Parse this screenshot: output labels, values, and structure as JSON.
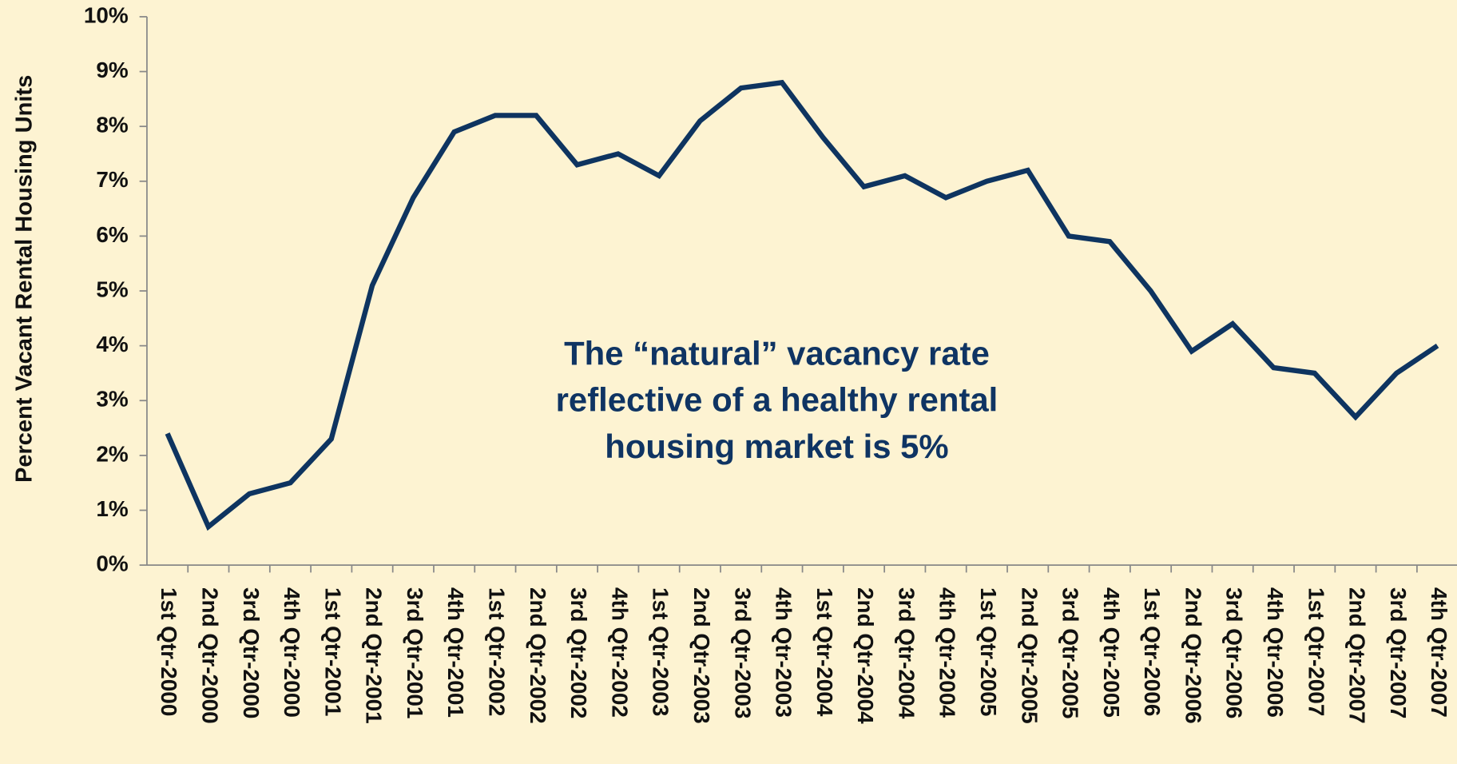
{
  "chart_data": {
    "type": "line",
    "y_axis_label": "Percent Vacant Rental Housing Units",
    "annotation": [
      "The “natural” vacancy rate",
      "reflective of a healthy rental",
      "housing market is 5%"
    ],
    "categories": [
      "1st Qtr-2000",
      "2nd Qtr-2000",
      "3rd Qtr-2000",
      "4th Qtr-2000",
      "1st Qtr-2001",
      "2nd Qtr-2001",
      "3rd Qtr-2001",
      "4th Qtr-2001",
      "1st Qtr-2002",
      "2nd Qtr-2002",
      "3rd Qtr-2002",
      "4th Qtr-2002",
      "1st Qtr-2003",
      "2nd Qtr-2003",
      "3rd Qtr-2003",
      "4th Qtr-2003",
      "1st Qtr-2004",
      "2nd Qtr-2004",
      "3rd Qtr-2004",
      "4th Qtr-2004",
      "1st Qtr-2005",
      "2nd Qtr-2005",
      "3rd Qtr-2005",
      "4th Qtr-2005",
      "1st Qtr-2006",
      "2nd Qtr-2006",
      "3rd Qtr-2006",
      "4th Qtr-2006",
      "1st Qtr-2007",
      "2nd Qtr-2007",
      "3rd Qtr-2007",
      "4th Qtr-2007"
    ],
    "values": [
      2.4,
      0.7,
      1.3,
      1.5,
      2.3,
      5.1,
      6.7,
      7.9,
      8.2,
      8.2,
      7.3,
      7.5,
      7.1,
      8.1,
      8.7,
      8.8,
      7.8,
      6.9,
      7.1,
      6.7,
      7.0,
      7.2,
      6.0,
      5.9,
      5.0,
      3.9,
      4.4,
      3.6,
      3.5,
      2.7,
      3.5,
      4.0
    ],
    "color": "#0e3460",
    "ylim": [
      0,
      10
    ],
    "yticks": [
      {
        "value": 0,
        "label": "0%"
      },
      {
        "value": 1,
        "label": "1%"
      },
      {
        "value": 2,
        "label": "2%"
      },
      {
        "value": 3,
        "label": "3%"
      },
      {
        "value": 4,
        "label": "4%"
      },
      {
        "value": 5,
        "label": "5%"
      },
      {
        "value": 6,
        "label": "6%"
      },
      {
        "value": 7,
        "label": "7%"
      },
      {
        "value": 8,
        "label": "8%"
      },
      {
        "value": 9,
        "label": "9%"
      },
      {
        "value": 10,
        "label": "10%"
      }
    ],
    "grid": false
  }
}
